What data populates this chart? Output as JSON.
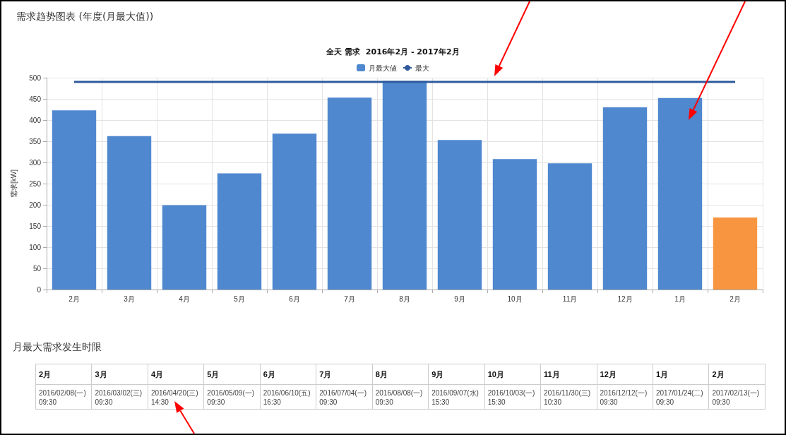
{
  "chart_data": {
    "type": "bar",
    "title": "需求趋势图表 (年度(月最大值))",
    "subtitle": "全天 需求  2016年2月 - 2017年2月",
    "ylabel": "需求[kW]",
    "categories": [
      "2月",
      "3月",
      "4月",
      "5月",
      "6月",
      "7月",
      "8月",
      "9月",
      "10月",
      "11月",
      "12月",
      "1月",
      "2月"
    ],
    "series": [
      {
        "name": "月最大値",
        "colors": [
          "#4f88cf",
          "#4f88cf",
          "#4f88cf",
          "#4f88cf",
          "#4f88cf",
          "#4f88cf",
          "#4f88cf",
          "#4f88cf",
          "#4f88cf",
          "#4f88cf",
          "#4f88cf",
          "#4f88cf",
          "#f79540"
        ],
        "values": [
          423,
          362,
          199,
          274,
          368,
          453,
          492,
          353,
          308,
          298,
          430,
          452,
          170
        ]
      },
      {
        "name": "最大",
        "type": "line",
        "color": "#2e5a9c",
        "values": [
          490,
          490,
          490,
          490,
          490,
          490,
          490,
          490,
          490,
          490,
          490,
          490,
          490
        ]
      }
    ],
    "ylim": [
      0,
      500
    ],
    "yticks": [
      0,
      50,
      100,
      150,
      200,
      250,
      300,
      350,
      400,
      450,
      500
    ],
    "grid": true,
    "legend": "top",
    "marker": "none",
    "annotations": [
      "月最大需求发生时限",
      "2016/02/08(一)\n09:30",
      "2016/03/02(三)\n09:30",
      "2016/04/20(三)\n14:30",
      "2016/05/09(一)\n09:30",
      "2016/06/10(五)\n16:30",
      "2016/07/04(一)\n09:30",
      "2016/08/08(一)\n09:30",
      "2016/09/07(水)\n15:30",
      "2016/10/03(一)\n15:30",
      "2016/11/30(三)\n10:30",
      "2016/12/12(一)\n09:30",
      "2017/01/24(二)\n09:30",
      "2017/02/13(一)\n09:30"
    ]
  }
}
